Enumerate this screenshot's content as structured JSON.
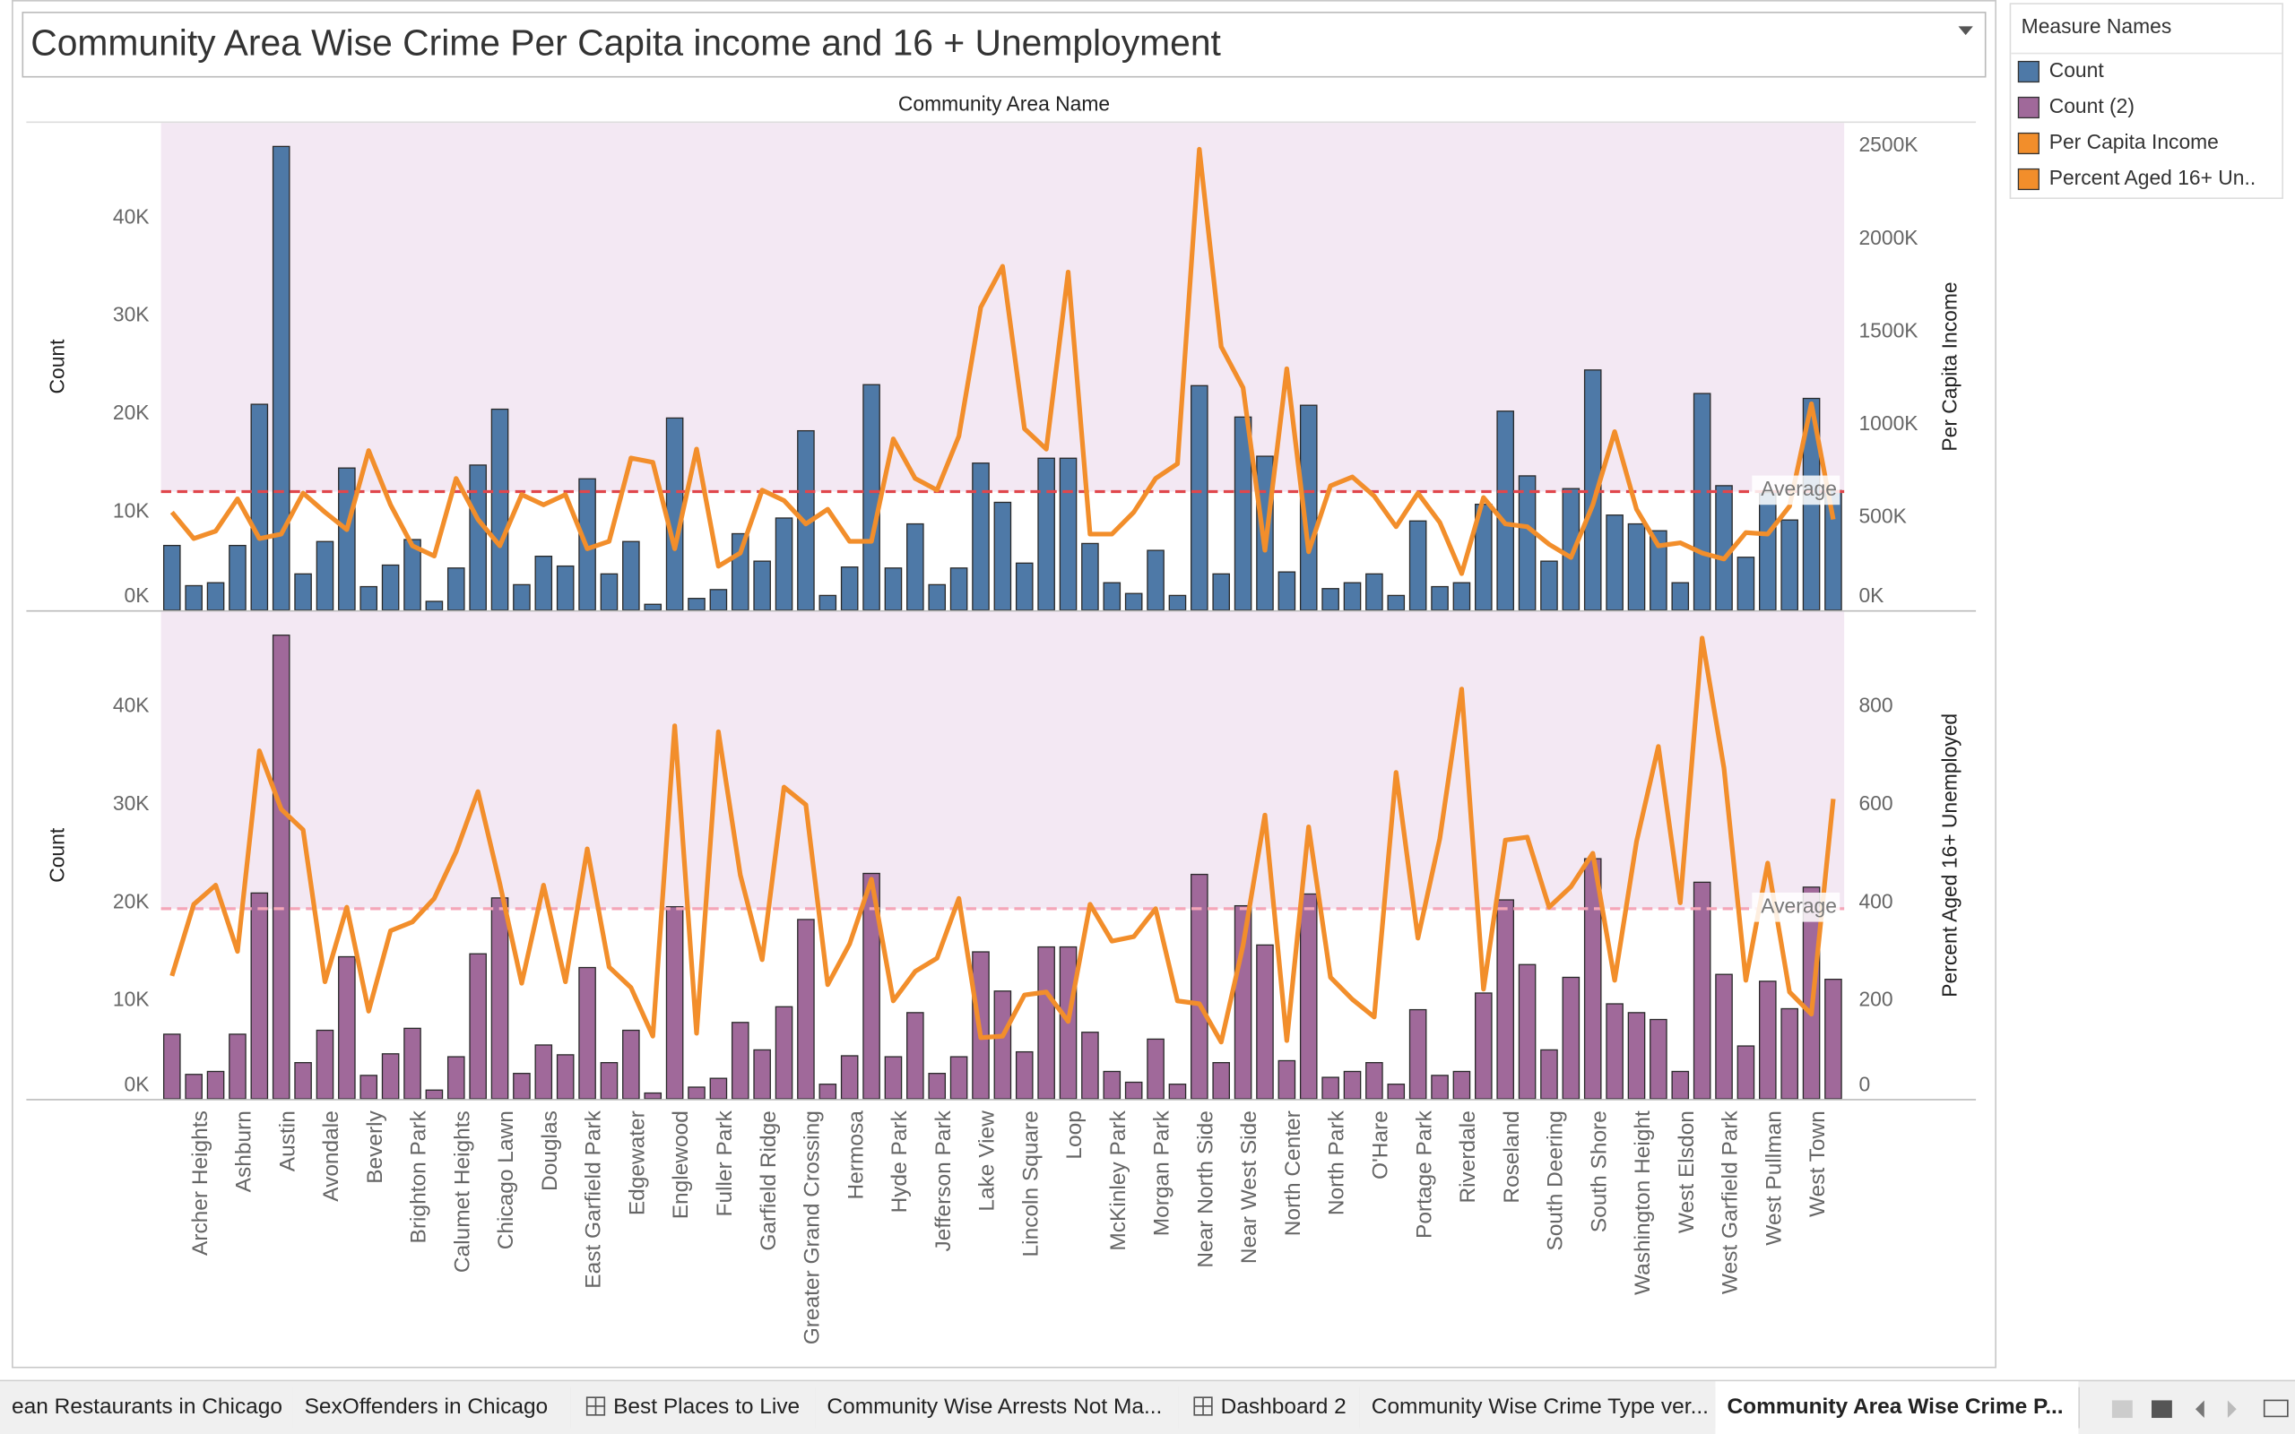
{
  "title": "Community Area Wise Crime Per Capita income and 16 + Unemployment",
  "legend_title": "Measure Names",
  "tabs": [
    "ean Restaurants in Chicago",
    "SexOffenders in Chicago",
    "Best Places to Live",
    "Community Wise Arrests Not Ma...",
    "Dashboard 2",
    "Community Wise Crime Type ver...",
    "Community Area Wise Crime P..."
  ],
  "chart_data": [
    {
      "type": "bar-line",
      "x_label": "Community Area Name",
      "y_label": "Count",
      "y2_label": "Per Capita Income",
      "ylim": [
        0,
        49700
      ],
      "yticks": [
        {
          "value": 0,
          "label": "0K"
        },
        {
          "value": 10000,
          "label": "10K"
        },
        {
          "value": 20000,
          "label": "20K"
        },
        {
          "value": 30000,
          "label": "30K"
        },
        {
          "value": 40000,
          "label": "40K"
        }
      ],
      "y2lim": [
        0,
        2626000
      ],
      "y2ticks": [
        {
          "value": 0,
          "label": "0K"
        },
        {
          "value": 500000,
          "label": "500K"
        },
        {
          "value": 1000000,
          "label": "1000K"
        },
        {
          "value": 1500000,
          "label": "1500K"
        },
        {
          "value": 2000000,
          "label": "2000K"
        },
        {
          "value": 2500000,
          "label": "2500K"
        }
      ],
      "reference_line": {
        "label": "Average",
        "axis": "y2",
        "value": 639000,
        "color": "#e0474c"
      },
      "series": [
        {
          "name": "Count",
          "mark": "bar",
          "color": "#4e79a7",
          "values": [
            6600,
            2500,
            2800,
            6600,
            21000,
            47300,
            3700,
            7000,
            14500,
            2400,
            4600,
            7200,
            900,
            4300,
            14800,
            20500,
            2600,
            5500,
            4500,
            13400,
            3700,
            7000,
            600,
            19600,
            1200,
            2100,
            7800,
            5000,
            9400,
            18300,
            1500,
            4400,
            23000,
            4300,
            8800,
            2600,
            4300,
            15000,
            11000,
            4800,
            15500,
            15500,
            6800,
            2800,
            1700,
            6100,
            1500,
            22900,
            3700,
            19700,
            15700,
            3900,
            20900,
            2200,
            2800,
            3700,
            1500,
            9100,
            2400,
            2800,
            10800,
            20300,
            13700,
            5000,
            12400,
            24500,
            9700,
            8800,
            8100,
            2800,
            22100,
            12700,
            5400,
            12000,
            9200,
            21600,
            12200
          ]
        },
        {
          "name": "Per Capita Income",
          "mark": "line",
          "axis": "y2",
          "color": "#f28e2b",
          "values": [
            528000,
            386000,
            426000,
            600000,
            386000,
            410000,
            631000,
            528000,
            434000,
            860000,
            568000,
            347000,
            292000,
            710000,
            489000,
            347000,
            623000,
            568000,
            623000,
            331000,
            371000,
            820000,
            797000,
            331000,
            868000,
            237000,
            308000,
            647000,
            591000,
            465000,
            544000,
            371000,
            371000,
            923000,
            710000,
            647000,
            938000,
            1632000,
            1853000,
            978000,
            868000,
            1822000,
            410000,
            410000,
            528000,
            710000,
            789000,
            2484000,
            1420000,
            1199000,
            323000,
            1301000,
            315000,
            670000,
            718000,
            615000,
            450000,
            631000,
            473000,
            197000,
            607000,
            465000,
            450000,
            355000,
            284000,
            568000,
            962000,
            544000,
            347000,
            363000,
            308000,
            276000,
            418000,
            410000,
            560000,
            1112000,
            489000
          ]
        }
      ]
    },
    {
      "type": "bar-line",
      "y_label": "Count",
      "y2_label": "Percent Aged 16+ Unemployed",
      "categories": [
        null,
        "Archer Heights",
        null,
        "Ashburn",
        null,
        "Austin",
        null,
        "Avondale",
        null,
        "Beverly",
        null,
        "Brighton Park",
        null,
        "Calumet Heights",
        null,
        "Chicago Lawn",
        null,
        "Douglas",
        null,
        "East Garfield Park",
        null,
        "Edgewater",
        null,
        "Englewood",
        null,
        "Fuller Park",
        null,
        "Garfield Ridge",
        null,
        "Greater Grand Crossing",
        null,
        "Hermosa",
        null,
        "Hyde Park",
        null,
        "Jefferson Park",
        null,
        "Lake View",
        null,
        "Lincoln Square",
        null,
        "Loop",
        null,
        "McKinley Park",
        null,
        "Morgan Park",
        null,
        "Near North Side",
        null,
        "Near West Side",
        null,
        "North Center",
        null,
        "North Park",
        null,
        "O'Hare",
        null,
        "Portage Park",
        null,
        "Riverdale",
        null,
        "Roseland",
        null,
        "South Deering",
        null,
        "South Shore",
        null,
        "Washington Height",
        null,
        "West Elsdon",
        null,
        "West Garfield Park",
        null,
        "West Pullman",
        null,
        "West Town",
        null
      ],
      "ylim": [
        0,
        49700
      ],
      "yticks": [
        {
          "value": 0,
          "label": "0K"
        },
        {
          "value": 10000,
          "label": "10K"
        },
        {
          "value": 20000,
          "label": "20K"
        },
        {
          "value": 30000,
          "label": "30K"
        },
        {
          "value": 40000,
          "label": "40K"
        }
      ],
      "y2lim": [
        0,
        994
      ],
      "y2ticks": [
        0,
        200,
        400,
        600,
        800
      ],
      "reference_line": {
        "label": "Average",
        "axis": "y2",
        "value": 388,
        "color": "#f4a6b8"
      },
      "series": [
        {
          "name": "Count (2)",
          "mark": "bar",
          "color": "#a0699a",
          "values": [
            6600,
            2500,
            2800,
            6600,
            21000,
            47300,
            3700,
            7000,
            14500,
            2400,
            4600,
            7200,
            900,
            4300,
            14800,
            20500,
            2600,
            5500,
            4500,
            13400,
            3700,
            7000,
            600,
            19600,
            1200,
            2100,
            7800,
            5000,
            9400,
            18300,
            1500,
            4400,
            23000,
            4300,
            8800,
            2600,
            4300,
            15000,
            11000,
            4800,
            15500,
            15500,
            6800,
            2800,
            1700,
            6100,
            1500,
            22900,
            3700,
            19700,
            15700,
            3900,
            20900,
            2200,
            2800,
            3700,
            1500,
            9100,
            2400,
            2800,
            10800,
            20300,
            13700,
            5000,
            12400,
            24500,
            9700,
            8800,
            8100,
            2800,
            22100,
            12700,
            5400,
            12000,
            9200,
            21600,
            12200
          ]
        },
        {
          "name": "Percent Aged 16+ Un..",
          "mark": "line",
          "axis": "y2",
          "color": "#f28e2b",
          "values": [
            251,
            397,
            436,
            301,
            710,
            591,
            549,
            239,
            391,
            179,
            343,
            361,
            409,
            504,
            627,
            439,
            236,
            436,
            239,
            510,
            269,
            227,
            128,
            761,
            134,
            749,
            457,
            284,
            636,
            600,
            233,
            316,
            448,
            200,
            260,
            287,
            409,
            125,
            128,
            212,
            218,
            158,
            397,
            322,
            331,
            388,
            200,
            194,
            116,
            313,
            579,
            119,
            555,
            248,
            203,
            167,
            666,
            328,
            531,
            836,
            224,
            528,
            534,
            391,
            433,
            501,
            242,
            525,
            719,
            400,
            940,
            675,
            242,
            481,
            218,
            173,
            612
          ]
        }
      ]
    }
  ]
}
